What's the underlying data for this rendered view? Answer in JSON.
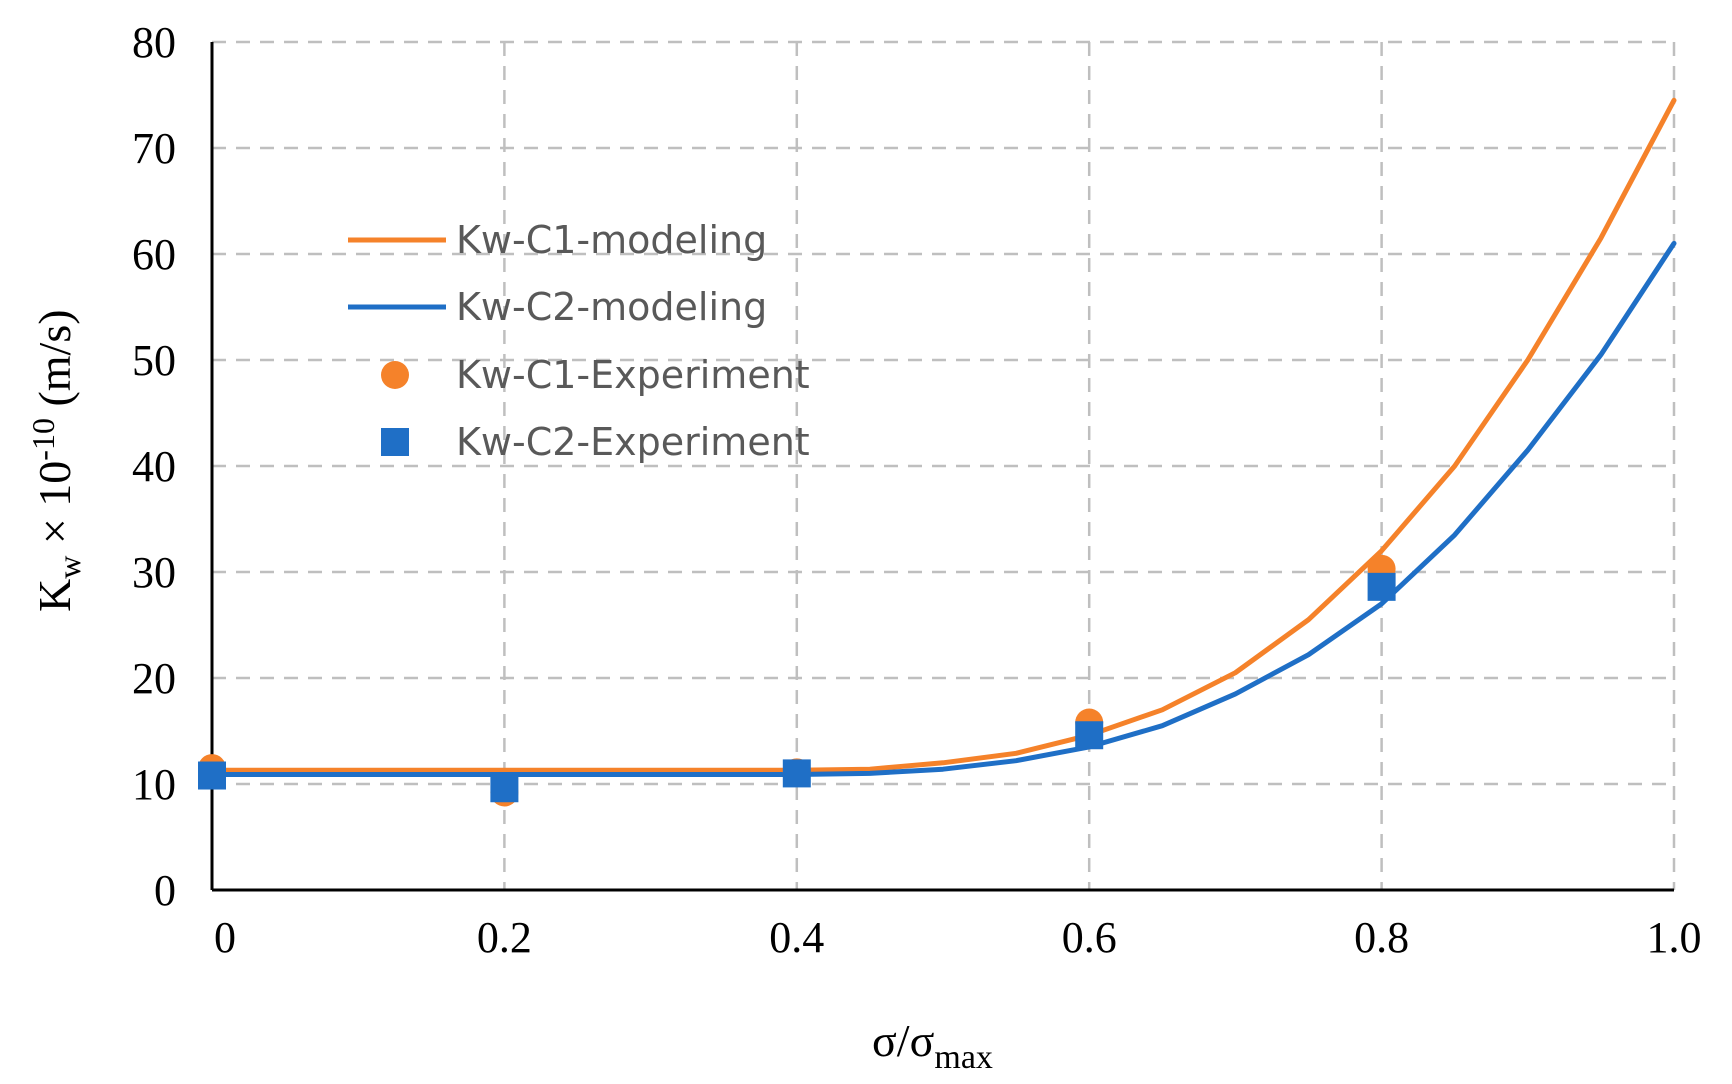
{
  "chart_data": {
    "type": "line",
    "title": "",
    "xlabel": {
      "base": "σ/σ",
      "sub": "max"
    },
    "ylabel": {
      "base": "K",
      "sub": "w",
      "mid": " × 10",
      "sup": "-10",
      "unit": " (m/s)"
    },
    "xlim": [
      0,
      1.0
    ],
    "ylim": [
      0,
      80
    ],
    "x_ticks": [
      0,
      0.2,
      0.4,
      0.6,
      0.8,
      1.0
    ],
    "x_tick_labels": [
      "0",
      "0.2",
      "0.4",
      "0.6",
      "0.8",
      "1.0"
    ],
    "y_ticks": [
      0,
      10,
      20,
      30,
      40,
      50,
      60,
      70,
      80
    ],
    "y_tick_labels": [
      "0",
      "10",
      "20",
      "30",
      "40",
      "50",
      "60",
      "70",
      "80"
    ],
    "grid": true,
    "legend_position": "upper-left",
    "series": [
      {
        "name": "Kw-C1-modeling",
        "kind": "line",
        "color": "#F5822A",
        "x": [
          0,
          0.1,
          0.2,
          0.3,
          0.4,
          0.45,
          0.5,
          0.55,
          0.6,
          0.65,
          0.7,
          0.75,
          0.8,
          0.85,
          0.9,
          0.95,
          1.0
        ],
        "y": [
          11.3,
          11.3,
          11.3,
          11.3,
          11.3,
          11.4,
          12.0,
          12.9,
          14.6,
          17.0,
          20.5,
          25.5,
          32.0,
          40.0,
          50.0,
          61.5,
          74.5
        ]
      },
      {
        "name": "Kw-C2-modeling",
        "kind": "line",
        "color": "#1F6FC6",
        "x": [
          0,
          0.1,
          0.2,
          0.3,
          0.4,
          0.45,
          0.5,
          0.55,
          0.6,
          0.65,
          0.7,
          0.75,
          0.8,
          0.85,
          0.9,
          0.95,
          1.0
        ],
        "y": [
          10.9,
          10.9,
          10.9,
          10.9,
          10.9,
          11.0,
          11.4,
          12.2,
          13.5,
          15.5,
          18.5,
          22.2,
          27.0,
          33.5,
          41.5,
          50.5,
          61.0
        ]
      },
      {
        "name": "Kw-C1-Experiment",
        "kind": "scatter",
        "marker": "circle",
        "color": "#F5822A",
        "x": [
          0,
          0.2,
          0.4,
          0.6,
          0.8
        ],
        "y": [
          11.5,
          9.2,
          11.1,
          15.8,
          30.3
        ]
      },
      {
        "name": "Kw-C2-Experiment",
        "kind": "scatter",
        "marker": "square",
        "color": "#1F6FC6",
        "x": [
          0,
          0.2,
          0.4,
          0.6,
          0.8
        ],
        "y": [
          10.8,
          9.6,
          11.0,
          14.6,
          28.6
        ]
      }
    ]
  }
}
